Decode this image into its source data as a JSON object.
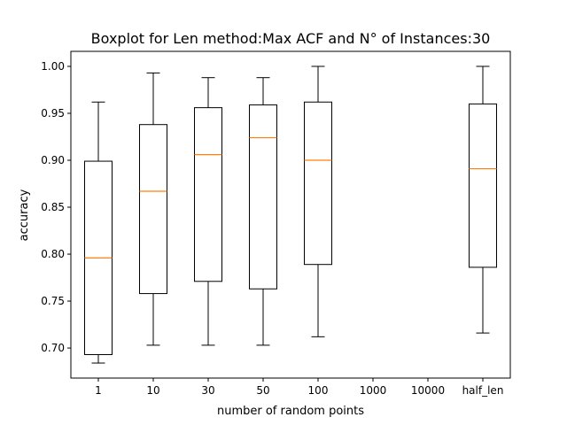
{
  "chart_data": {
    "type": "boxplot",
    "title": "Boxplot for Len method:Max ACF and N° of Instances:30",
    "xlabel": "number of random points",
    "ylabel": "accuracy",
    "ylim": [
      0.668,
      1.016
    ],
    "yticks": [
      "0.70",
      "0.75",
      "0.80",
      "0.85",
      "0.90",
      "0.95",
      "1.00"
    ],
    "categories": [
      "1",
      "10",
      "30",
      "50",
      "100",
      "1000",
      "10000",
      "half_len"
    ],
    "boxes": [
      {
        "category": "1",
        "whisker_low": 0.684,
        "q1": 0.693,
        "median": 0.796,
        "q3": 0.899,
        "whisker_high": 0.962
      },
      {
        "category": "10",
        "whisker_low": 0.703,
        "q1": 0.758,
        "median": 0.867,
        "q3": 0.938,
        "whisker_high": 0.993
      },
      {
        "category": "30",
        "whisker_low": 0.703,
        "q1": 0.771,
        "median": 0.906,
        "q3": 0.956,
        "whisker_high": 0.988
      },
      {
        "category": "50",
        "whisker_low": 0.703,
        "q1": 0.763,
        "median": 0.924,
        "q3": 0.959,
        "whisker_high": 0.988
      },
      {
        "category": "100",
        "whisker_low": 0.712,
        "q1": 0.789,
        "median": 0.9,
        "q3": 0.962,
        "whisker_high": 1.0
      },
      {
        "category": "1000"
      },
      {
        "category": "10000"
      },
      {
        "category": "half_len",
        "whisker_low": 0.716,
        "q1": 0.786,
        "median": 0.891,
        "q3": 0.96,
        "whisker_high": 1.0
      }
    ],
    "colors": {
      "box": "#000000",
      "median": "#ff7f0e",
      "frame": "#000000"
    },
    "grid": false,
    "legend": "none"
  }
}
